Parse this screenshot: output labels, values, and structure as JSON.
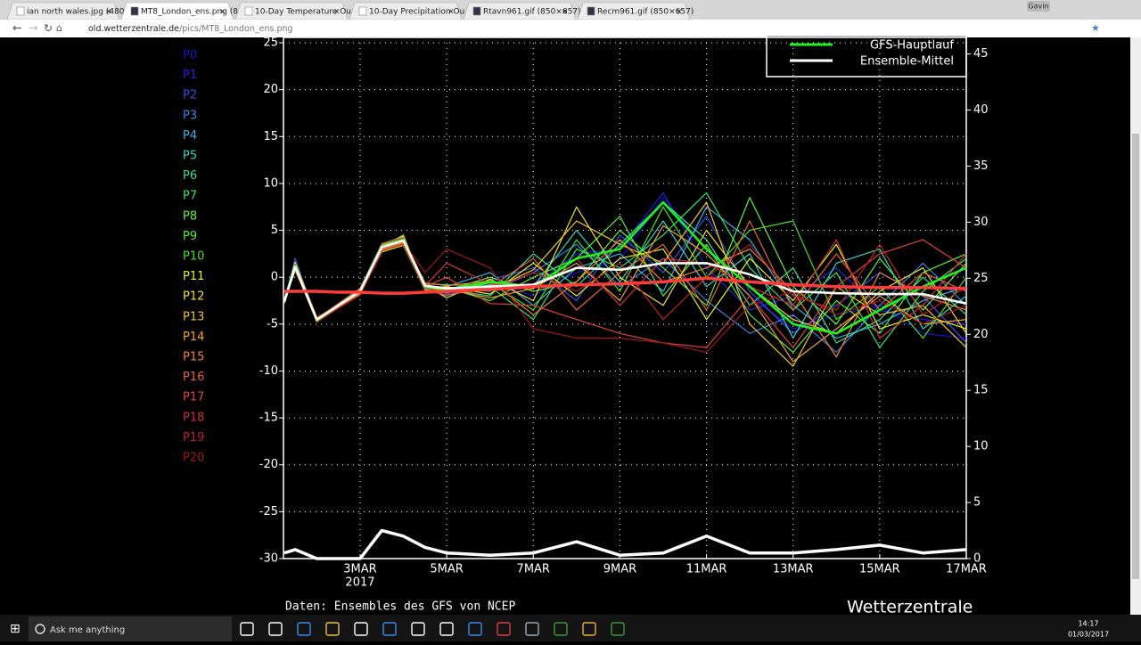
{
  "browser": {
    "tabs": [
      "ian north wales.jpg (480…",
      "MT8_London_ens.png (8…",
      "10-Day Temperature Ou…",
      "10-Day Precipitation Ou…",
      "Rtavn961.gif (850×657)",
      "Recm961.gif (850×657)"
    ],
    "profile": "Gavin",
    "url_host": "old.wetterzentrale.de",
    "url_path": "/pics/MT8_London_ens.png"
  },
  "chart_data": {
    "type": "line",
    "x": [
      1.25,
      1.5,
      2,
      2.5,
      3,
      3.5,
      4,
      4.5,
      5,
      6,
      7,
      8,
      9,
      10,
      11,
      12,
      13,
      14,
      15,
      16,
      17
    ],
    "xlim": [
      1.23,
      17
    ],
    "xticks": [
      {
        "value": 3,
        "label": "3MAR"
      },
      {
        "value": 5,
        "label": "5MAR"
      },
      {
        "value": 7,
        "label": "7MAR"
      },
      {
        "value": 9,
        "label": "9MAR"
      },
      {
        "value": 11,
        "label": "11MAR"
      },
      {
        "value": 13,
        "label": "13MAR"
      },
      {
        "value": 15,
        "label": "15MAR"
      },
      {
        "value": 17,
        "label": "17MAR"
      }
    ],
    "x_sublabel": "2017",
    "ylim": [
      -30,
      25
    ],
    "yticks": [
      -30,
      -25,
      -20,
      -15,
      -10,
      -5,
      0,
      5,
      10,
      15,
      20,
      25
    ],
    "y2lim": [
      0,
      46
    ],
    "y2ticks": [
      0,
      5,
      10,
      15,
      20,
      25,
      30,
      35,
      40,
      45
    ],
    "grid": true,
    "series": [
      {
        "name": "P0",
        "color": "#1414c8",
        "values": [
          -2.7,
          1.2,
          -4.6,
          -3.2,
          -1.4,
          3.2,
          3.9,
          -1.2,
          -1.5,
          -0.5,
          -2.0,
          0.5,
          1.8,
          8.5,
          3.0,
          -2.0,
          -5.5,
          -4.0,
          -3.0,
          -6.0,
          -6.5
        ]
      },
      {
        "name": "P1",
        "color": "#2222d8",
        "values": [
          -2.5,
          1.5,
          -4.4,
          -3.0,
          -1.6,
          3.0,
          4.1,
          -0.8,
          -1.8,
          -1.2,
          -0.8,
          2.5,
          3.0,
          9.0,
          1.0,
          -3.5,
          -2.0,
          1.0,
          -3.5,
          -4.5,
          -5.0
        ]
      },
      {
        "name": "P2",
        "color": "#3450e6",
        "values": [
          -2.6,
          2.0,
          -4.7,
          -3.3,
          -1.8,
          2.8,
          3.5,
          -1.0,
          -2.0,
          -0.3,
          1.0,
          -2.5,
          4.5,
          0.5,
          6.5,
          -1.5,
          -6.0,
          -3.0,
          0.5,
          -2.0,
          -7.0
        ]
      },
      {
        "name": "P3",
        "color": "#3a80e6",
        "values": [
          -2.4,
          0.8,
          -4.5,
          -2.8,
          -1.3,
          3.4,
          3.7,
          -1.3,
          -1.2,
          -1.5,
          0.5,
          3.5,
          -1.0,
          2.0,
          -2.5,
          -6.0,
          -4.0,
          -8.0,
          -3.0,
          1.5,
          -3.0
        ]
      },
      {
        "name": "P4",
        "color": "#38b0e6",
        "values": [
          -2.8,
          1.0,
          -4.3,
          -3.1,
          -1.5,
          3.1,
          4.0,
          -1.1,
          -1.0,
          0.5,
          -3.0,
          1.0,
          2.5,
          -1.5,
          7.5,
          4.0,
          -3.0,
          -6.5,
          -5.0,
          -2.5,
          -1.0
        ]
      },
      {
        "name": "P5",
        "color": "#34d4c4",
        "values": [
          -2.5,
          1.3,
          -4.8,
          -3.0,
          -1.2,
          3.6,
          4.3,
          -0.9,
          -1.6,
          -0.8,
          -1.0,
          5.0,
          -0.5,
          6.0,
          -1.0,
          2.5,
          -6.5,
          1.5,
          3.0,
          -5.5,
          -2.0
        ]
      },
      {
        "name": "P6",
        "color": "#34e094",
        "values": [
          -2.6,
          0.9,
          -4.6,
          -2.9,
          -1.7,
          2.9,
          3.6,
          -1.4,
          -1.3,
          -2.0,
          2.5,
          -1.0,
          3.5,
          8.0,
          4.0,
          -3.0,
          1.0,
          -7.0,
          -4.5,
          0.0,
          -4.0
        ]
      },
      {
        "name": "P7",
        "color": "#34e464",
        "values": [
          -2.4,
          1.1,
          -4.4,
          -3.2,
          -1.4,
          3.3,
          4.2,
          -0.7,
          -0.8,
          -1.0,
          -4.5,
          3.0,
          1.0,
          4.5,
          9.0,
          1.0,
          -3.5,
          0.5,
          -7.5,
          -1.5,
          2.0
        ]
      },
      {
        "name": "P8",
        "color": "#64f044",
        "values": [
          -2.7,
          1.4,
          -4.5,
          -3.1,
          -1.6,
          3.0,
          3.8,
          -1.0,
          -1.4,
          0.0,
          -1.5,
          -0.5,
          5.0,
          1.0,
          -3.0,
          8.5,
          -1.0,
          -5.0,
          2.0,
          -3.5,
          1.5
        ]
      },
      {
        "name": "P9",
        "color": "#52f034",
        "values": [
          -2.5,
          1.0,
          -4.7,
          -3.0,
          -1.5,
          3.2,
          4.5,
          -1.2,
          -1.1,
          -2.5,
          0.0,
          2.0,
          6.5,
          -2.0,
          3.5,
          -4.0,
          -8.0,
          -2.5,
          -6.0,
          0.5,
          2.5
        ]
      },
      {
        "name": "P10",
        "color": "#44e024",
        "values": [
          -2.6,
          1.2,
          -4.5,
          -2.9,
          -1.3,
          3.5,
          4.0,
          -0.9,
          -1.7,
          -0.6,
          -3.5,
          4.0,
          -1.5,
          7.5,
          0.0,
          5.0,
          6.0,
          -4.5,
          -1.0,
          -6.5,
          0.0
        ]
      },
      {
        "name": "P11",
        "color": "#e4f024",
        "values": [
          -2.5,
          0.7,
          -4.6,
          -3.1,
          -1.8,
          2.7,
          3.4,
          -1.3,
          -1.0,
          -1.8,
          1.5,
          -2.0,
          2.0,
          3.0,
          -4.5,
          2.0,
          -2.5,
          3.5,
          -5.5,
          -4.0,
          -5.5
        ]
      },
      {
        "name": "P12",
        "color": "#f0e034",
        "values": [
          -2.4,
          1.6,
          -4.3,
          -3.0,
          -1.5,
          3.1,
          3.9,
          -0.8,
          -2.2,
          -0.2,
          -2.5,
          7.5,
          0.0,
          -3.0,
          5.0,
          -1.0,
          -4.5,
          -6.0,
          -1.5,
          1.0,
          -6.0
        ]
      },
      {
        "name": "P13",
        "color": "#f0c234",
        "values": [
          -2.8,
          1.1,
          -4.5,
          -3.3,
          -1.6,
          3.4,
          4.4,
          -1.1,
          -1.5,
          -1.4,
          0.8,
          6.0,
          3.5,
          1.5,
          8.0,
          -5.0,
          -9.5,
          -1.0,
          -4.0,
          -3.0,
          -7.5
        ]
      },
      {
        "name": "P14",
        "color": "#f0a234",
        "values": [
          -2.6,
          0.9,
          -4.7,
          -3.0,
          -1.4,
          2.9,
          3.7,
          -1.0,
          -1.3,
          -2.2,
          -1.2,
          1.5,
          -2.5,
          5.5,
          2.5,
          -2.0,
          -9.0,
          -5.5,
          -2.0,
          -5.0,
          -4.5
        ]
      },
      {
        "name": "P15",
        "color": "#f08434",
        "values": [
          -2.5,
          1.3,
          -4.4,
          -2.8,
          -1.2,
          3.3,
          4.1,
          -0.6,
          -0.9,
          -0.4,
          -4.0,
          -0.5,
          4.0,
          -0.5,
          1.0,
          3.0,
          -1.5,
          -8.5,
          0.5,
          -2.0,
          -3.5
        ]
      },
      {
        "name": "P16",
        "color": "#e46434",
        "values": [
          -2.7,
          1.0,
          -4.6,
          -3.2,
          -1.7,
          3.0,
          3.6,
          -1.4,
          -1.9,
          -1.1,
          2.0,
          -3.5,
          0.5,
          3.5,
          -3.5,
          6.0,
          -3.5,
          2.5,
          -3.5,
          0.5,
          -1.5
        ]
      },
      {
        "name": "P17",
        "color": "#e04434",
        "values": [
          -2.5,
          1.2,
          -4.5,
          -3.1,
          -1.5,
          3.2,
          4.0,
          -1.0,
          0.0,
          -2.8,
          -3.0,
          -4.5,
          -6.0,
          -7.0,
          -7.5,
          -2.0,
          -7.5,
          -1.0,
          2.5,
          4.0,
          1.0
        ]
      },
      {
        "name": "P18",
        "color": "#d03030",
        "values": [
          -2.6,
          1.4,
          -4.3,
          -2.9,
          -1.4,
          3.6,
          4.2,
          -0.9,
          1.5,
          -0.7,
          -1.0,
          2.0,
          -3.0,
          2.0,
          1.5,
          -1.0,
          -3.0,
          4.0,
          -6.5,
          -3.0,
          2.5
        ]
      },
      {
        "name": "P19",
        "color": "#c02222",
        "values": [
          -2.4,
          0.8,
          -4.8,
          -3.3,
          -1.9,
          2.8,
          3.5,
          -1.2,
          -1.6,
          -1.3,
          0.5,
          -1.5,
          1.5,
          -4.5,
          0.0,
          3.5,
          -2.0,
          -3.5,
          3.5,
          -4.0,
          -1.0
        ]
      },
      {
        "name": "P20",
        "color": "#a01818",
        "values": [
          -2.6,
          1.1,
          -4.5,
          -3.0,
          -1.5,
          3.1,
          3.8,
          0.5,
          3.0,
          1.0,
          -5.5,
          -6.5,
          -6.5,
          -7.0,
          -8.0,
          -3.0,
          -1.5,
          -4.0,
          -2.5,
          -5.0,
          -3.0
        ]
      },
      {
        "name": "GFS-Hauptlauf",
        "color": "#22ee22",
        "values": [
          -2.5,
          1.2,
          -4.6,
          -3.0,
          -1.5,
          3.3,
          4.0,
          -1.0,
          -1.3,
          -0.5,
          -1.0,
          2.0,
          3.0,
          8.0,
          3.0,
          -1.0,
          -5.0,
          -6.0,
          -3.5,
          -1.0,
          1.0
        ]
      },
      {
        "name": "Ensemble-Mittel",
        "color": "#ffffff",
        "values": [
          -2.6,
          1.1,
          -4.5,
          -3.0,
          -1.5,
          3.2,
          3.9,
          -0.9,
          -1.2,
          -1.0,
          -0.8,
          1.0,
          0.8,
          1.5,
          1.5,
          0.3,
          -1.5,
          -1.7,
          -1.8,
          -1.8,
          -2.8
        ]
      },
      {
        "color": "#ff3a3a",
        "values": [
          -1.5,
          -1.5,
          -1.5,
          -1.6,
          -1.6,
          -1.7,
          -1.7,
          -1.6,
          -1.5,
          -1.3,
          -1.0,
          -0.8,
          -0.7,
          -0.5,
          -0.1,
          -0.5,
          -0.8,
          -1.0,
          -1.1,
          -1.1,
          -1.2
        ]
      },
      {
        "color": "#ffffff",
        "axis": "y2",
        "values": [
          0.5,
          0.8,
          0,
          0,
          0,
          2.5,
          2,
          1,
          0.5,
          0.3,
          0.5,
          1.5,
          0.3,
          0.5,
          2,
          0.5,
          0.5,
          0.8,
          1.2,
          0.5,
          0.8
        ]
      }
    ],
    "source": "Daten: Ensembles des GFS von NCEP",
    "brand": "Wetterzentrale"
  },
  "taskbar": {
    "search": "Ask me anything",
    "time": "14:17",
    "date": "01/03/2017"
  }
}
